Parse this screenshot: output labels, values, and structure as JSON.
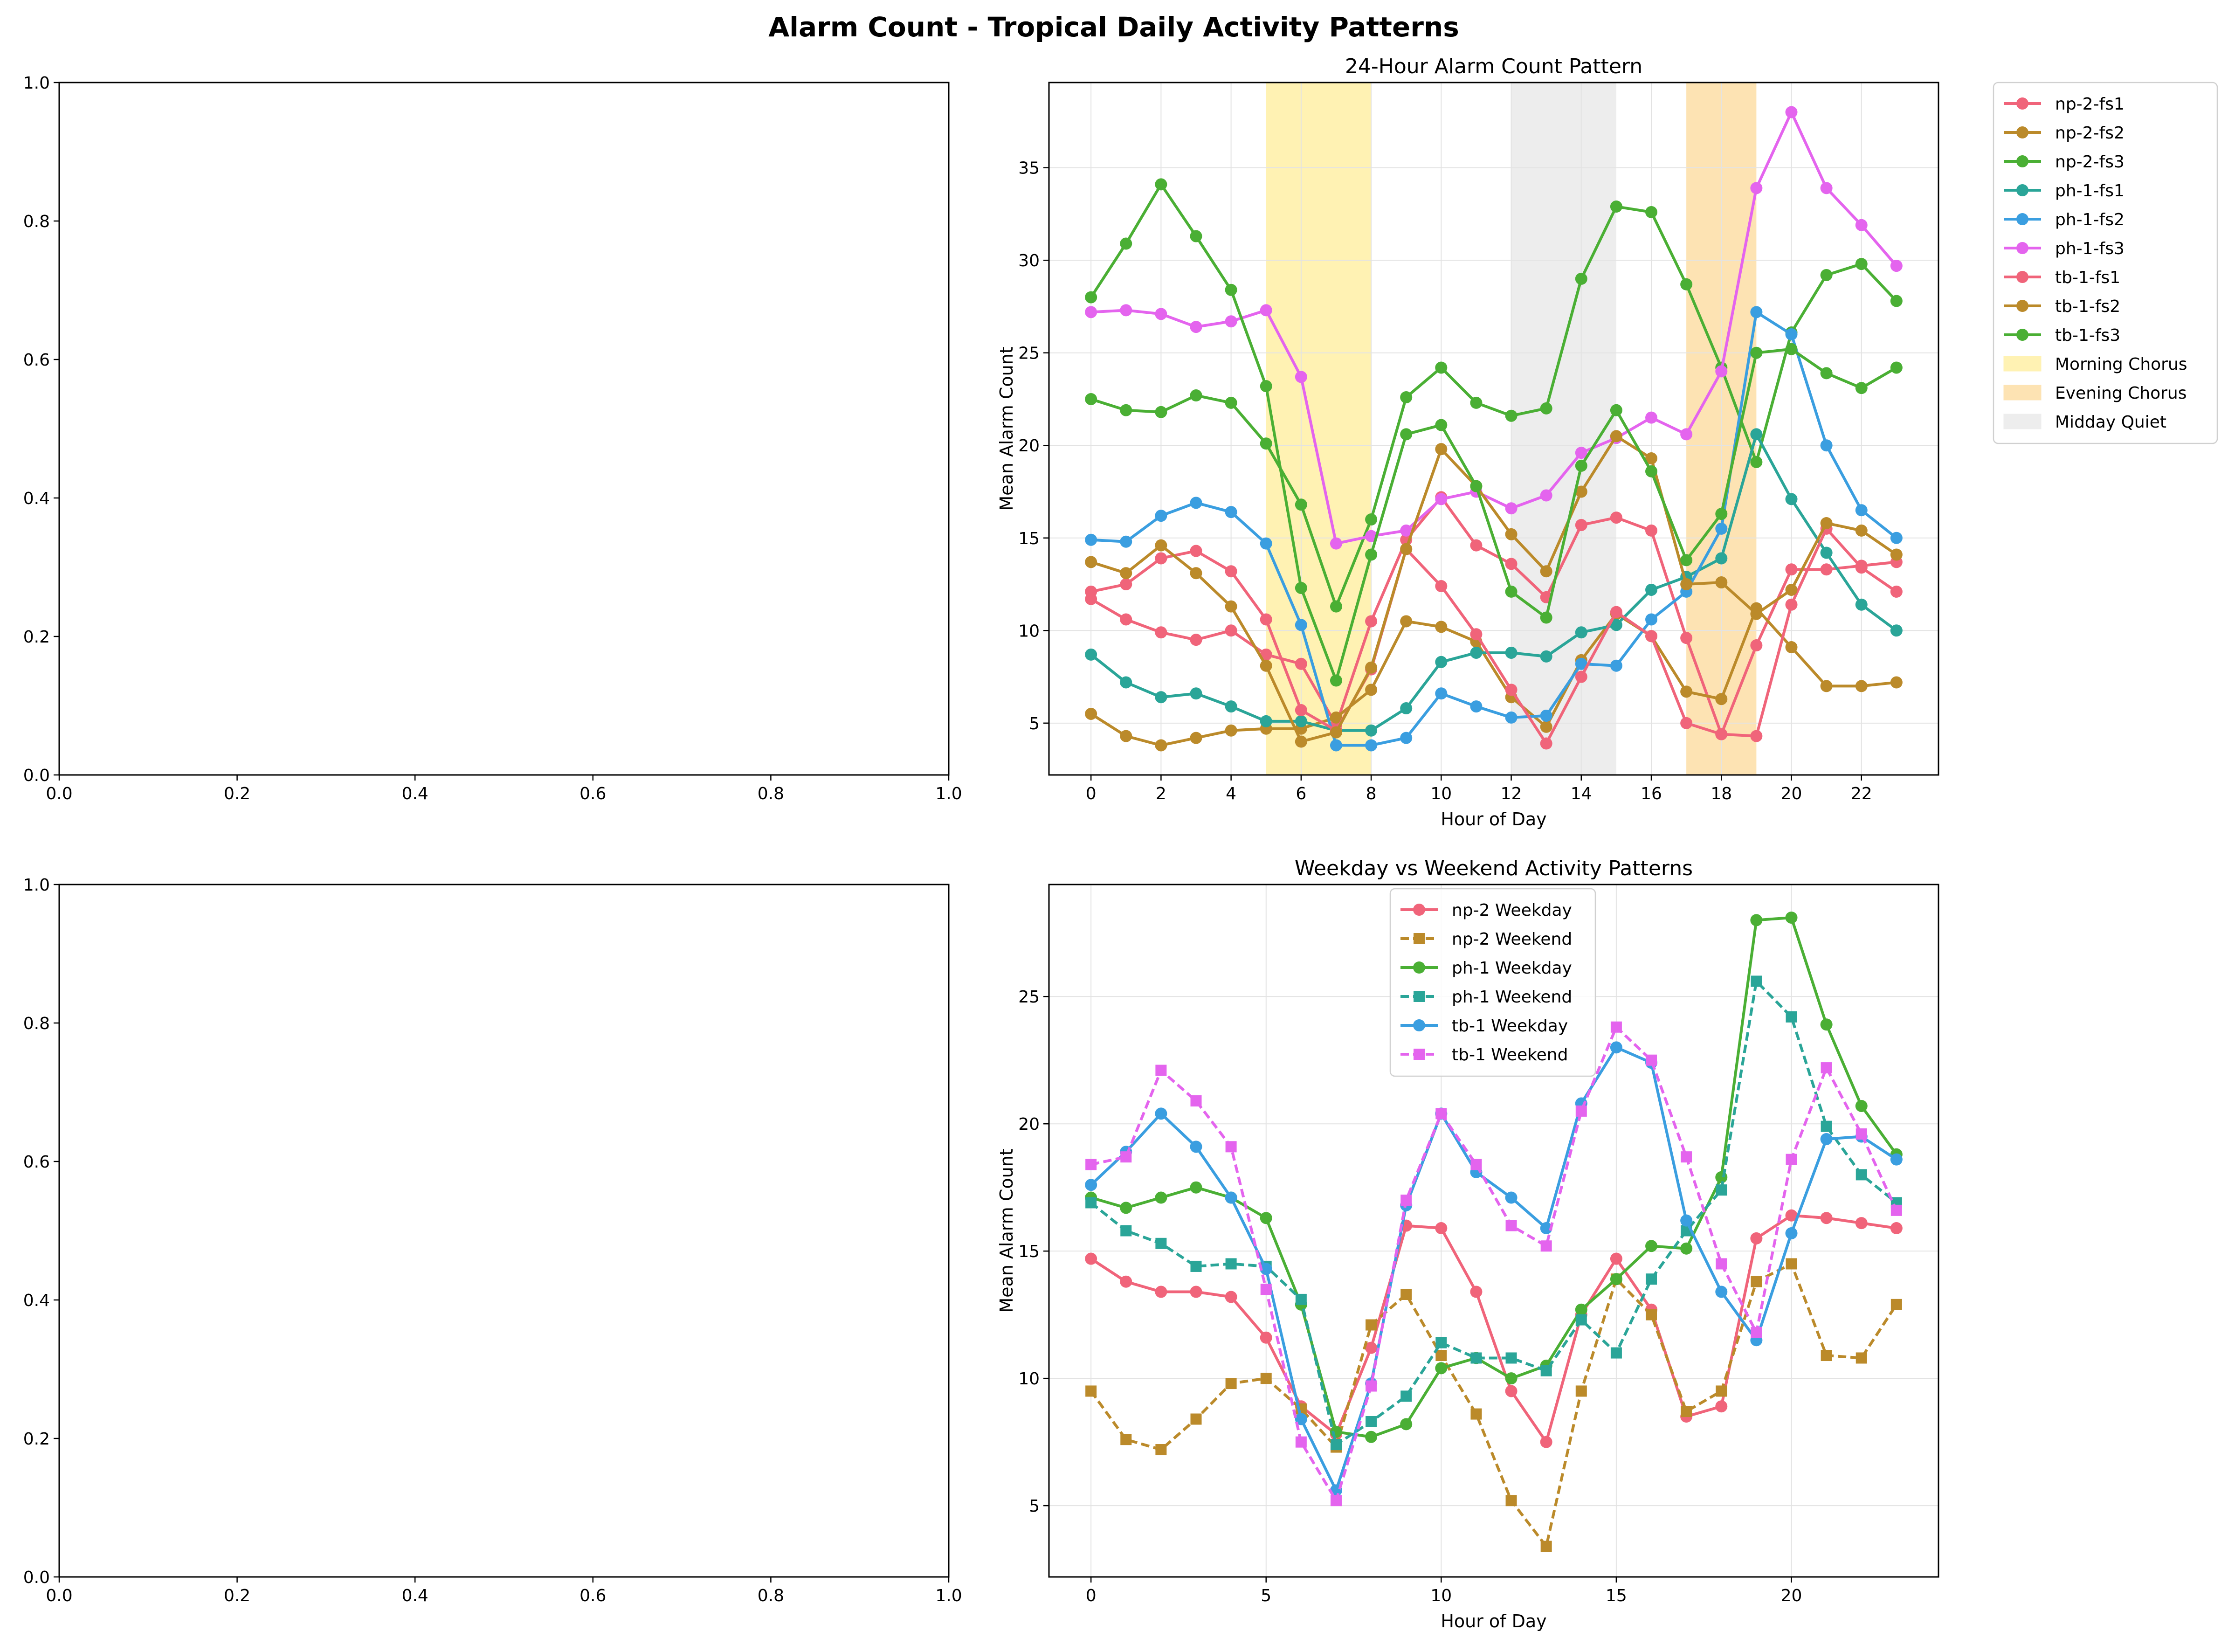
{
  "figure": {
    "title": "Alarm Count - Tropical Daily Activity Patterns"
  },
  "empty_panel_ticks": [
    "0.0",
    "0.2",
    "0.4",
    "0.6",
    "0.8",
    "1.0"
  ],
  "chart_data": [
    {
      "type": "empty",
      "position": "top-left",
      "xlim": [
        0,
        1
      ],
      "ylim": [
        0,
        1
      ],
      "xticks": [
        0.0,
        0.2,
        0.4,
        0.6,
        0.8,
        1.0
      ],
      "yticks": [
        0.0,
        0.2,
        0.4,
        0.6,
        0.8,
        1.0
      ]
    },
    {
      "type": "line",
      "position": "top-right",
      "title": "24-Hour Alarm Count Pattern",
      "xlabel": "Hour of Day",
      "ylabel": "Mean Alarm Count",
      "xlim": [
        -1.2,
        24.2
      ],
      "ylim": [
        2.2,
        39.6
      ],
      "xticks": [
        0,
        2,
        4,
        6,
        8,
        10,
        12,
        14,
        16,
        18,
        20,
        22
      ],
      "yticks": [
        5,
        10,
        15,
        20,
        25,
        30,
        35
      ],
      "grid": true,
      "legend_position": "outside-right",
      "x": [
        0,
        1,
        2,
        3,
        4,
        5,
        6,
        7,
        8,
        9,
        10,
        11,
        12,
        13,
        14,
        15,
        16,
        17,
        18,
        19,
        20,
        21,
        22,
        23
      ],
      "spans": [
        {
          "name": "Morning Chorus",
          "start": 5,
          "end": 8,
          "color": "#fff2b3"
        },
        {
          "name": "Evening Chorus",
          "start": 17,
          "end": 19,
          "color": "#fde3b3"
        },
        {
          "name": "Midday Quiet",
          "start": 12,
          "end": 15,
          "color": "#ededed"
        }
      ],
      "series": [
        {
          "name": "np-2-fs1",
          "color": "#f0647a",
          "values": [
            11.7,
            10.6,
            9.9,
            9.5,
            10.0,
            8.7,
            8.2,
            4.9,
            10.5,
            14.9,
            17.2,
            14.6,
            13.6,
            11.8,
            15.7,
            16.1,
            15.4,
            9.6,
            4.4,
            9.2,
            13.3,
            13.3,
            13.5,
            13.7
          ]
        },
        {
          "name": "np-2-fs2",
          "color": "#bb8a2a",
          "values": [
            5.5,
            4.3,
            3.8,
            4.2,
            4.6,
            4.7,
            4.7,
            5.3,
            6.8,
            10.5,
            10.2,
            9.4,
            6.4,
            4.8,
            8.4,
            10.9,
            9.7,
            6.7,
            6.3,
            11.2,
            9.1,
            7.0,
            7.0,
            7.2
          ]
        },
        {
          "name": "np-2-fs3",
          "color": "#4aaf34",
          "values": [
            22.5,
            21.9,
            21.8,
            22.7,
            22.3,
            20.1,
            16.8,
            11.3,
            16.0,
            22.6,
            24.2,
            22.3,
            21.6,
            22.0,
            29.0,
            32.9,
            32.6,
            28.7,
            24.2,
            19.1,
            26.1,
            29.2,
            29.8,
            27.8
          ]
        },
        {
          "name": "ph-1-fs1",
          "color": "#2aa598",
          "values": [
            8.7,
            7.2,
            6.4,
            6.6,
            5.9,
            5.1,
            5.1,
            4.6,
            4.6,
            5.8,
            8.3,
            8.8,
            8.8,
            8.6,
            9.9,
            10.3,
            12.2,
            12.9,
            13.9,
            20.6,
            17.1,
            14.2,
            11.4,
            10.0
          ]
        },
        {
          "name": "ph-1-fs2",
          "color": "#3a9ee0",
          "values": [
            14.9,
            14.8,
            16.2,
            16.9,
            16.4,
            14.7,
            10.3,
            3.8,
            3.8,
            4.2,
            6.6,
            5.9,
            5.3,
            5.4,
            8.2,
            8.1,
            10.6,
            12.1,
            15.5,
            27.2,
            26.0,
            20.0,
            16.5,
            15.0
          ]
        },
        {
          "name": "ph-1-fs3",
          "color": "#e464ee",
          "values": [
            27.2,
            27.3,
            27.1,
            26.4,
            26.7,
            27.3,
            23.7,
            14.7,
            15.1,
            15.4,
            17.1,
            17.5,
            16.6,
            17.3,
            19.6,
            20.4,
            21.5,
            20.6,
            24.0,
            33.9,
            38.0,
            33.9,
            31.9,
            29.7
          ]
        },
        {
          "name": "tb-1-fs1",
          "color": "#f0647a",
          "values": [
            12.1,
            12.5,
            13.9,
            14.3,
            13.2,
            10.6,
            5.7,
            4.6,
            7.9,
            14.4,
            12.4,
            9.8,
            6.8,
            3.9,
            7.5,
            11.0,
            9.7,
            5.0,
            4.4,
            4.3,
            11.4,
            15.5,
            13.4,
            12.1
          ]
        },
        {
          "name": "tb-1-fs2",
          "color": "#bb8a2a",
          "values": [
            13.7,
            13.1,
            14.6,
            13.1,
            11.3,
            8.1,
            4.0,
            4.5,
            8.0,
            14.4,
            19.8,
            17.8,
            15.2,
            13.2,
            17.5,
            20.5,
            19.3,
            12.5,
            12.6,
            10.9,
            12.2,
            15.8,
            15.4,
            14.1
          ]
        },
        {
          "name": "tb-1-fs3",
          "color": "#4aaf34",
          "values": [
            28.0,
            30.9,
            34.1,
            31.3,
            28.4,
            23.2,
            12.3,
            7.3,
            14.1,
            20.6,
            21.1,
            17.8,
            12.1,
            10.7,
            18.9,
            21.9,
            18.6,
            13.8,
            16.3,
            25.0,
            25.2,
            23.9,
            23.1,
            24.2
          ]
        }
      ]
    },
    {
      "type": "empty",
      "position": "bottom-left",
      "xlim": [
        0,
        1
      ],
      "ylim": [
        0,
        1
      ],
      "xticks": [
        0.0,
        0.2,
        0.4,
        0.6,
        0.8,
        1.0
      ],
      "yticks": [
        0.0,
        0.2,
        0.4,
        0.6,
        0.8,
        1.0
      ]
    },
    {
      "type": "line",
      "position": "bottom-right",
      "title": "Weekday vs Weekend Activity Patterns",
      "xlabel": "Hour of Day",
      "ylabel": "Mean Alarm Count",
      "xlim": [
        -1.2,
        24.2
      ],
      "ylim": [
        2.2,
        29.4
      ],
      "xticks": [
        0,
        5,
        10,
        15,
        20
      ],
      "yticks": [
        5,
        10,
        15,
        20,
        25
      ],
      "grid": true,
      "legend_position": "upper-center",
      "x": [
        0,
        1,
        2,
        3,
        4,
        5,
        6,
        7,
        8,
        9,
        10,
        11,
        12,
        13,
        14,
        15,
        16,
        17,
        18,
        19,
        20,
        21,
        22,
        23
      ],
      "series": [
        {
          "name": "np-2 Weekday",
          "color": "#f0647a",
          "dashed": false,
          "marker": "circle",
          "values": [
            14.7,
            13.8,
            13.4,
            13.4,
            13.2,
            11.6,
            8.9,
            7.8,
            11.2,
            16.0,
            15.9,
            13.4,
            9.5,
            7.5,
            12.5,
            14.7,
            12.7,
            8.5,
            8.9,
            15.5,
            16.4,
            16.3,
            16.1,
            15.9
          ]
        },
        {
          "name": "np-2 Weekend",
          "color": "#bb8a2a",
          "dashed": true,
          "marker": "square",
          "values": [
            9.5,
            7.6,
            7.2,
            8.4,
            9.8,
            10.0,
            8.8,
            7.3,
            12.1,
            13.3,
            10.9,
            8.6,
            5.2,
            3.4,
            9.5,
            13.9,
            12.5,
            8.7,
            9.5,
            13.8,
            14.5,
            10.9,
            10.8,
            12.9
          ]
        },
        {
          "name": "ph-1 Weekday",
          "color": "#4aaf34",
          "dashed": false,
          "marker": "circle",
          "values": [
            17.1,
            16.7,
            17.1,
            17.5,
            17.1,
            16.3,
            12.9,
            7.9,
            7.7,
            8.2,
            10.4,
            10.8,
            10.0,
            10.5,
            12.7,
            13.9,
            15.2,
            15.1,
            17.9,
            28.0,
            28.1,
            23.9,
            20.7,
            18.8
          ]
        },
        {
          "name": "ph-1 Weekend",
          "color": "#2aa598",
          "dashed": true,
          "marker": "square",
          "values": [
            16.9,
            15.8,
            15.3,
            14.4,
            14.5,
            14.4,
            13.1,
            7.4,
            8.3,
            9.3,
            11.4,
            10.8,
            10.8,
            10.3,
            12.3,
            11.0,
            13.9,
            15.8,
            17.4,
            25.6,
            24.2,
            19.9,
            18.0,
            16.9
          ]
        },
        {
          "name": "tb-1 Weekday",
          "color": "#3a9ee0",
          "dashed": false,
          "marker": "circle",
          "values": [
            17.6,
            18.9,
            20.4,
            19.1,
            17.1,
            14.3,
            8.4,
            5.6,
            9.8,
            16.8,
            20.4,
            18.1,
            17.1,
            15.9,
            20.8,
            23.0,
            22.4,
            16.2,
            13.4,
            11.5,
            15.7,
            19.4,
            19.5,
            18.6
          ]
        },
        {
          "name": "tb-1 Weekend",
          "color": "#e464ee",
          "dashed": true,
          "marker": "square",
          "values": [
            18.4,
            18.7,
            22.1,
            20.9,
            19.1,
            13.5,
            7.5,
            5.2,
            9.7,
            17.0,
            20.4,
            18.4,
            16.0,
            15.2,
            20.5,
            23.8,
            22.5,
            18.7,
            14.5,
            11.8,
            18.6,
            22.2,
            19.6,
            16.6
          ]
        }
      ]
    }
  ]
}
